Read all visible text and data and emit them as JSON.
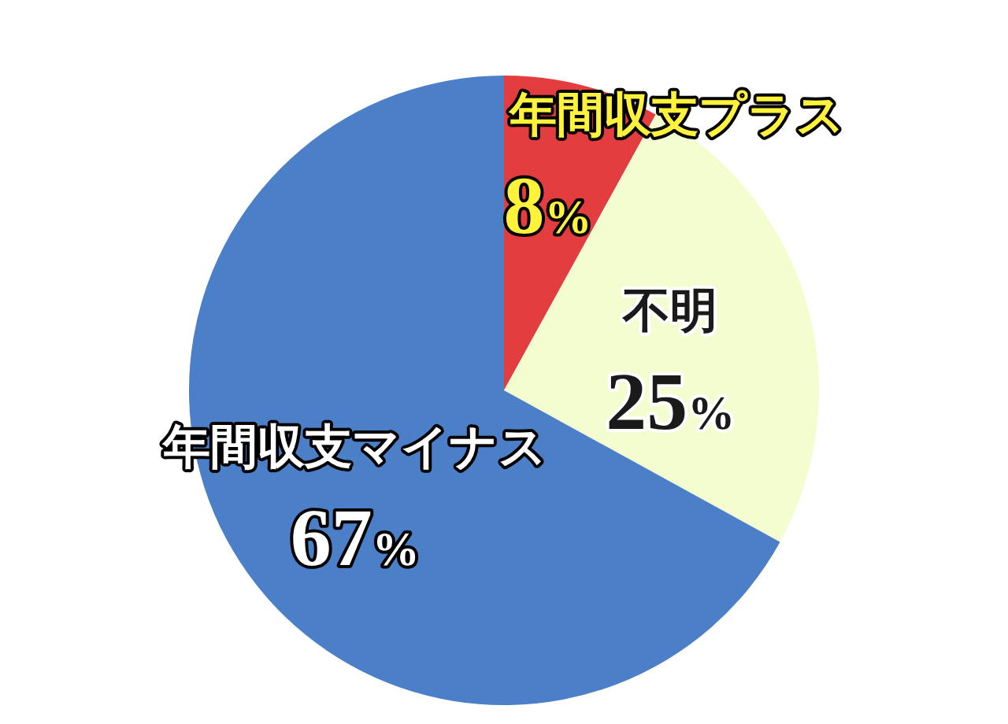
{
  "chart_data": {
    "type": "pie",
    "categories": [
      "年間収支プラス",
      "不明",
      "年間収支マイナス"
    ],
    "values": [
      8,
      25,
      67
    ],
    "colors": [
      "#e33d3f",
      "#f3fdd0",
      "#4b7fc8"
    ],
    "value_labels": [
      "8%",
      "25%",
      "67%"
    ]
  }
}
